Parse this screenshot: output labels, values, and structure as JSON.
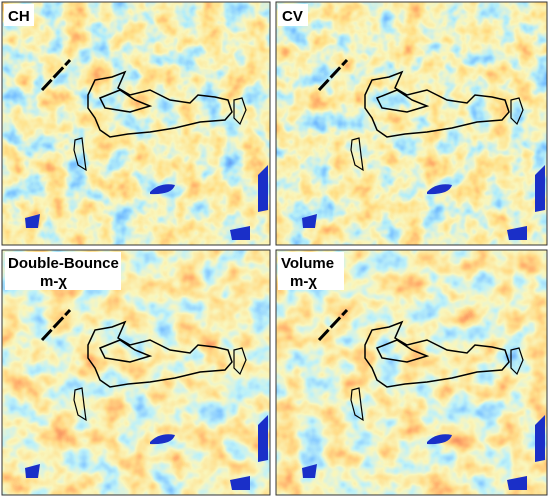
{
  "panels": [
    {
      "label": [
        "CH"
      ]
    },
    {
      "label": [
        "CV"
      ]
    },
    {
      "label": [
        "Double-Bounce",
        "m-χ"
      ]
    },
    {
      "label": [
        "Volume",
        "m-χ"
      ]
    }
  ]
}
